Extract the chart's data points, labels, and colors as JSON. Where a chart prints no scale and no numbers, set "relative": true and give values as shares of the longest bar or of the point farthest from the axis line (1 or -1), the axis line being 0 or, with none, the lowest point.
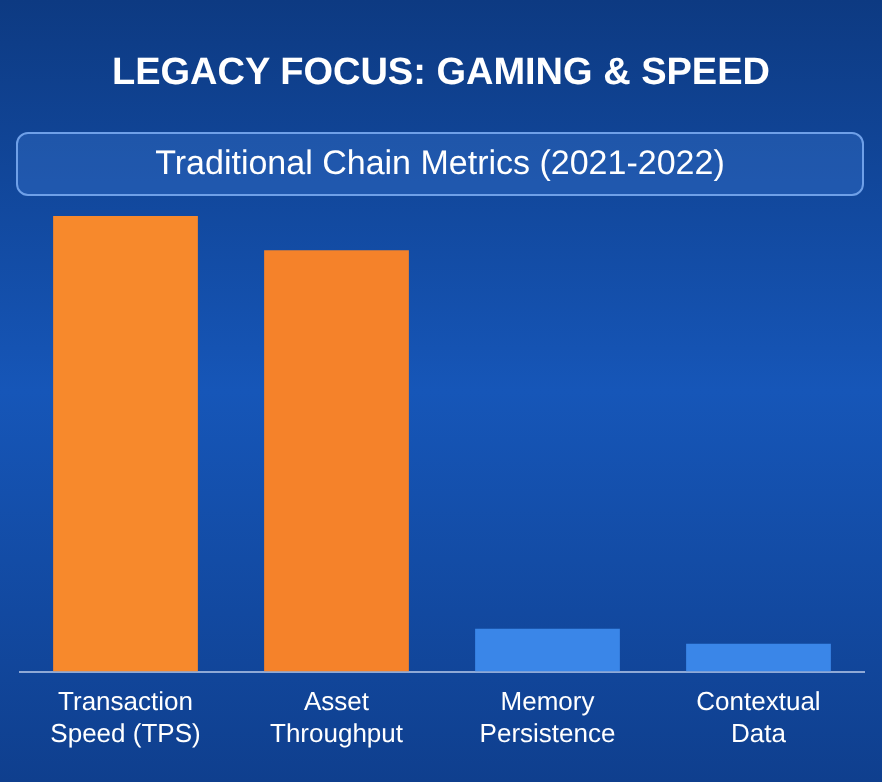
{
  "chart_data": {
    "type": "bar",
    "title": "LEGACY FOCUS: GAMING & SPEED",
    "subtitle": "Traditional Chain Metrics (2021-2022)",
    "categories": [
      "Transaction\nSpeed (TPS)",
      "Asset\nThroughput",
      "Memory\nPersistence",
      "Contextual\nData"
    ],
    "values": [
      1,
      0.925,
      0.094,
      0.061
    ],
    "colors": [
      "#f7892c",
      "#f5822a",
      "#3a86e8",
      "#3a86e8"
    ],
    "relative": true,
    "grid": false,
    "legend": false
  }
}
